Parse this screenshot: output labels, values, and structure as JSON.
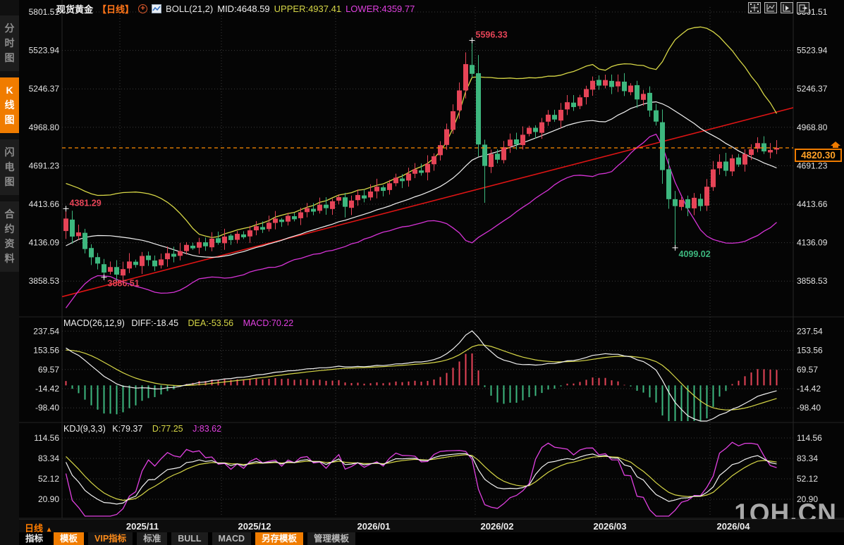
{
  "header": {
    "symbol": "现货黄金",
    "period_tag": "【日线】",
    "plus_icon": "+",
    "boll_label": "BOLL(21,2)",
    "mid": "MID:4648.59",
    "upper": "UPPER:4937.41",
    "lower": "LOWER:4359.77"
  },
  "sidebar": {
    "tabs": [
      {
        "label": "分时图",
        "active": false
      },
      {
        "label": "K线图",
        "active": true
      },
      {
        "label": "闪电图",
        "active": false
      },
      {
        "label": "合约资料",
        "active": false
      }
    ]
  },
  "mini_icons": [
    "crosshair",
    "chart-axes",
    "chart-indicator",
    "pane-export"
  ],
  "macd_header": {
    "name": "MACD(26,12,9)",
    "diff": "DIFF:-18.45",
    "dea": "DEA:-53.56",
    "macd": "MACD:70.22"
  },
  "kdj_header": {
    "name": "KDJ(9,3,3)",
    "k": "K:79.37",
    "d": "D:77.25",
    "j": "J:83.62"
  },
  "current_price": "4820.30",
  "xaxis": {
    "period_label": "日线",
    "period_arrow": "▲",
    "dates": [
      "2025/11",
      "2025/12",
      "2026/01",
      "2026/02",
      "2026/03",
      "2026/04"
    ]
  },
  "bottom_toolbar": {
    "items": [
      {
        "label": "指标",
        "style": "plain"
      },
      {
        "label": "模板",
        "style": "active"
      },
      {
        "label": "VIP指标",
        "style": "vip"
      },
      {
        "label": "标准",
        "style": "dim"
      },
      {
        "label": "BULL",
        "style": "dim"
      },
      {
        "label": "MACD",
        "style": "dim"
      },
      {
        "label": "另存模板",
        "style": "active"
      },
      {
        "label": "管理模板",
        "style": "dim"
      }
    ]
  },
  "watermark": "1QH.CN",
  "colors": {
    "up": "#e64457",
    "down": "#3db77e",
    "boll_mid": "#f2f2f2",
    "boll_upper": "#d6d646",
    "boll_lower": "#d633d6",
    "macd_diff": "#f2f2f2",
    "macd_dea": "#d6d646",
    "kdj_k": "#f2f2f2",
    "kdj_d": "#d6d646",
    "kdj_j": "#e040e0",
    "trend": "#dd1414",
    "price_line": "#ff8c00",
    "accent": "#f07c00",
    "grid": "#3c3c3c",
    "axis_text": "#e3e3e3"
  },
  "chart_data": {
    "type": "candlestick",
    "symbol": "现货黄金",
    "period": "日线",
    "y_ticks": [
      5801.51,
      5523.94,
      5246.37,
      4968.8,
      4691.23,
      4413.66,
      4136.09,
      3858.53
    ],
    "macd_ticks": [
      237.54,
      153.56,
      69.57,
      -14.42,
      -98.4
    ],
    "kdj_ticks": [
      114.56,
      83.34,
      52.12,
      20.9
    ],
    "x_dates": [
      "2025/11",
      "2025/12",
      "2026/01",
      "2026/02",
      "2026/03",
      "2026/04"
    ],
    "month_start_indices": [
      9,
      25,
      43,
      65,
      84,
      102
    ],
    "last_price": 4820.3,
    "first_open": 4220,
    "pre_closes": [
      3660,
      3700,
      3740,
      3790,
      3840,
      3880,
      3930,
      3980,
      4020,
      4070,
      4110,
      4150,
      4200,
      4240,
      4280,
      4310,
      4340,
      4360,
      4380,
      4390,
      4370
    ],
    "closes": [
      4310,
      4180,
      4210,
      4090,
      4030,
      3985,
      3920,
      3960,
      3905,
      3945,
      4000,
      3975,
      4040,
      4010,
      3965,
      4015,
      4060,
      4035,
      4075,
      4120,
      4095,
      4140,
      4110,
      4165,
      4135,
      4180,
      4155,
      4200,
      4175,
      4225,
      4255,
      4230,
      4280,
      4310,
      4285,
      4330,
      4305,
      4355,
      4385,
      4360,
      4410,
      4385,
      4435,
      4465,
      4395,
      4440,
      4480,
      4455,
      4505,
      4540,
      4510,
      4565,
      4605,
      4580,
      4635,
      4665,
      4640,
      4705,
      4760,
      4840,
      4955,
      5085,
      5235,
      5425,
      5355,
      4845,
      4690,
      4775,
      4735,
      4825,
      4880,
      4845,
      4915,
      4965,
      4935,
      5005,
      5060,
      5025,
      5095,
      5150,
      5115,
      5185,
      5245,
      5305,
      5270,
      5310,
      5260,
      5300,
      5230,
      5270,
      5170,
      5210,
      5090,
      5010,
      4660,
      4450,
      4400,
      4445,
      4385,
      4460,
      4400,
      4540,
      4665,
      4720,
      4655,
      4745,
      4700,
      4775,
      4810,
      4855,
      4795,
      4805,
      4820.3
    ],
    "extreme_overrides": {
      "0": {
        "high": 4381.29
      },
      "6": {
        "low": 3886.51
      },
      "44": {
        "low": 4318
      },
      "63": {
        "high": 5510
      },
      "64": {
        "high": 5596.33
      },
      "66": {
        "low": 4424
      },
      "96": {
        "low": 4099.02
      }
    },
    "annotations": [
      {
        "text": "5596.33",
        "index": 64,
        "attach": "high",
        "color": "#e64457"
      },
      {
        "text": "4381.29",
        "index": 0,
        "attach": "high",
        "color": "#e64457"
      },
      {
        "text": "3886.51",
        "index": 6,
        "attach": "low",
        "color": "#e64457"
      },
      {
        "text": "4099.02",
        "index": 96,
        "attach": "low",
        "color": "#3db77e"
      }
    ],
    "trendline": {
      "start_index": -0.6,
      "start_price": 3746,
      "end_index": 115,
      "end_price": 5115
    },
    "indicators": {
      "boll": {
        "period": 21,
        "mult": 2,
        "mid": 4648.59,
        "upper": 4937.41,
        "lower": 4359.77
      },
      "macd": {
        "params": [
          26,
          12,
          9
        ],
        "diff": -18.45,
        "dea": -53.56,
        "macd": 70.22
      },
      "kdj": {
        "params": [
          9,
          3,
          3
        ],
        "k": 79.37,
        "d": 77.25,
        "j": 83.62
      }
    }
  }
}
